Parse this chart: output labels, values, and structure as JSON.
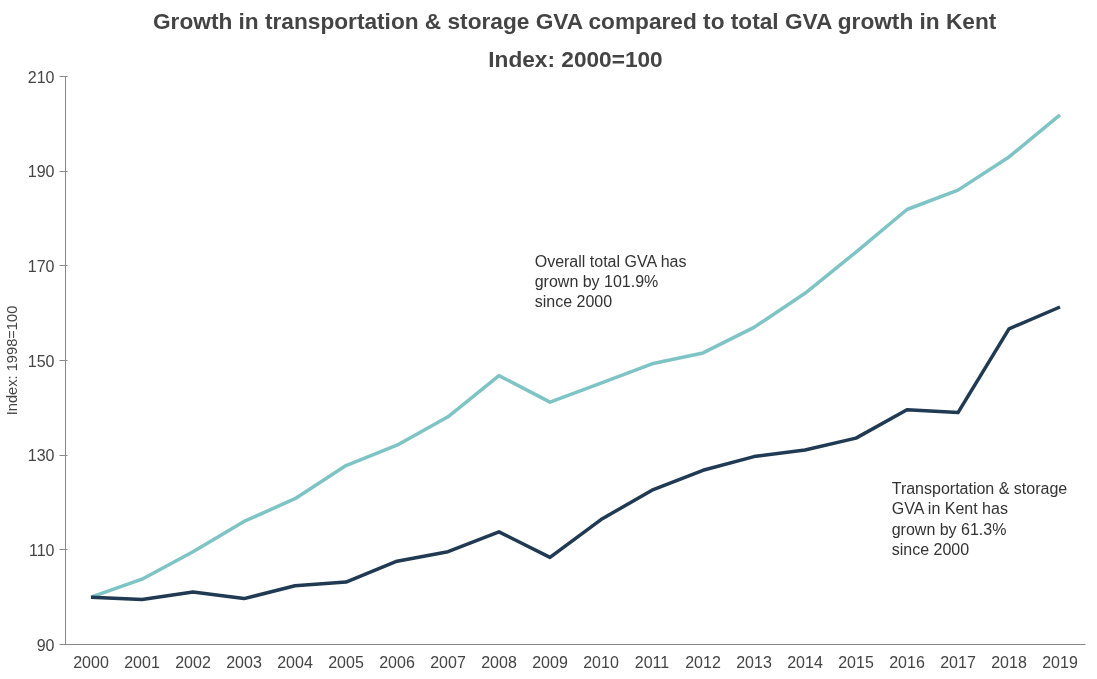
{
  "chart_data": {
    "type": "line",
    "title": "Growth in transportation & storage GVA compared to total GVA growth in Kent",
    "subtitle": "Index: 2000=100",
    "ylabel": "Index: 1998=100",
    "categories": [
      "2000",
      "2001",
      "2002",
      "2003",
      "2004",
      "2005",
      "2006",
      "2007",
      "2008",
      "2009",
      "2010",
      "2011",
      "2012",
      "2013",
      "2014",
      "2015",
      "2016",
      "2017",
      "2018",
      "2019"
    ],
    "series": [
      {
        "color": "#7fc4c4",
        "values": [
          100,
          103.8,
          109.6,
          116,
          120.8,
          127.8,
          132.1,
          138.1,
          146.8,
          141.2,
          145.2,
          149.3,
          151.6,
          157,
          164.2,
          172.9,
          181.9,
          186,
          193,
          201.9
        ]
      },
      {
        "color": "#1f3a52",
        "values": [
          100,
          99.5,
          101.1,
          99.7,
          102.4,
          103.2,
          107.6,
          109.6,
          113.8,
          108.4,
          116.4,
          122.6,
          126.8,
          129.7,
          131.1,
          133.6,
          139.6,
          139,
          156.7,
          161.3
        ]
      }
    ],
    "ylim": [
      90,
      210
    ],
    "yticks": [
      90,
      110,
      130,
      150,
      170,
      190,
      210
    ],
    "grid": false,
    "marker": "none",
    "line_style": "solid",
    "annotations": [
      "Overall total GVA has\n grown by 101.9%\nsince 2000",
      "Transportation & storage\nGVA in Kent has\n grown by 61.3%\nsince 2000"
    ]
  }
}
